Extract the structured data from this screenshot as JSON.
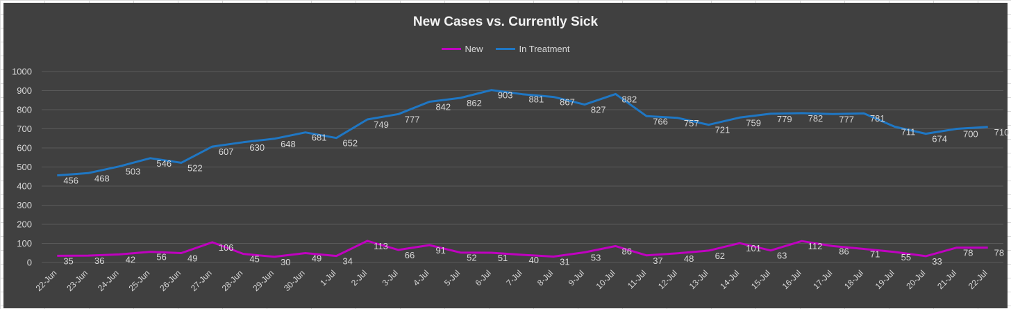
{
  "chart_data": {
    "type": "line",
    "title": "New Cases vs. Currently Sick",
    "xlabel": "",
    "ylabel": "",
    "ylim": [
      0,
      1000
    ],
    "yticks": [
      0,
      100,
      200,
      300,
      400,
      500,
      600,
      700,
      800,
      900,
      1000
    ],
    "grid": true,
    "legend_position": "top",
    "categories": [
      "22-Jun",
      "23-Jun",
      "24-Jun",
      "25-Jun",
      "26-Jun",
      "27-Jun",
      "28-Jun",
      "29-Jun",
      "30-Jun",
      "1-Jul",
      "2-Jul",
      "3-Jul",
      "4-Jul",
      "5-Jul",
      "6-Jul",
      "7-Jul",
      "8-Jul",
      "9-Jul",
      "10-Jul",
      "11-Jul",
      "12-Jul",
      "13-Jul",
      "14-Jul",
      "15-Jul",
      "16-Jul",
      "17-Jul",
      "18-Jul",
      "19-Jul",
      "20-Jul",
      "21-Jul",
      "22-Jul"
    ],
    "series": [
      {
        "name": "New",
        "color": "#c000c0",
        "values": [
          35,
          36,
          42,
          56,
          49,
          106,
          45,
          30,
          49,
          34,
          113,
          66,
          91,
          52,
          51,
          40,
          31,
          53,
          86,
          37,
          48,
          62,
          101,
          63,
          112,
          86,
          71,
          55,
          33,
          78,
          78
        ]
      },
      {
        "name": "In Treatment",
        "color": "#1f77c4",
        "values": [
          456,
          468,
          503,
          546,
          522,
          607,
          630,
          648,
          681,
          652,
          749,
          777,
          842,
          862,
          903,
          881,
          867,
          827,
          882,
          766,
          757,
          721,
          759,
          779,
          782,
          777,
          781,
          711,
          674,
          700,
          710
        ]
      }
    ]
  }
}
